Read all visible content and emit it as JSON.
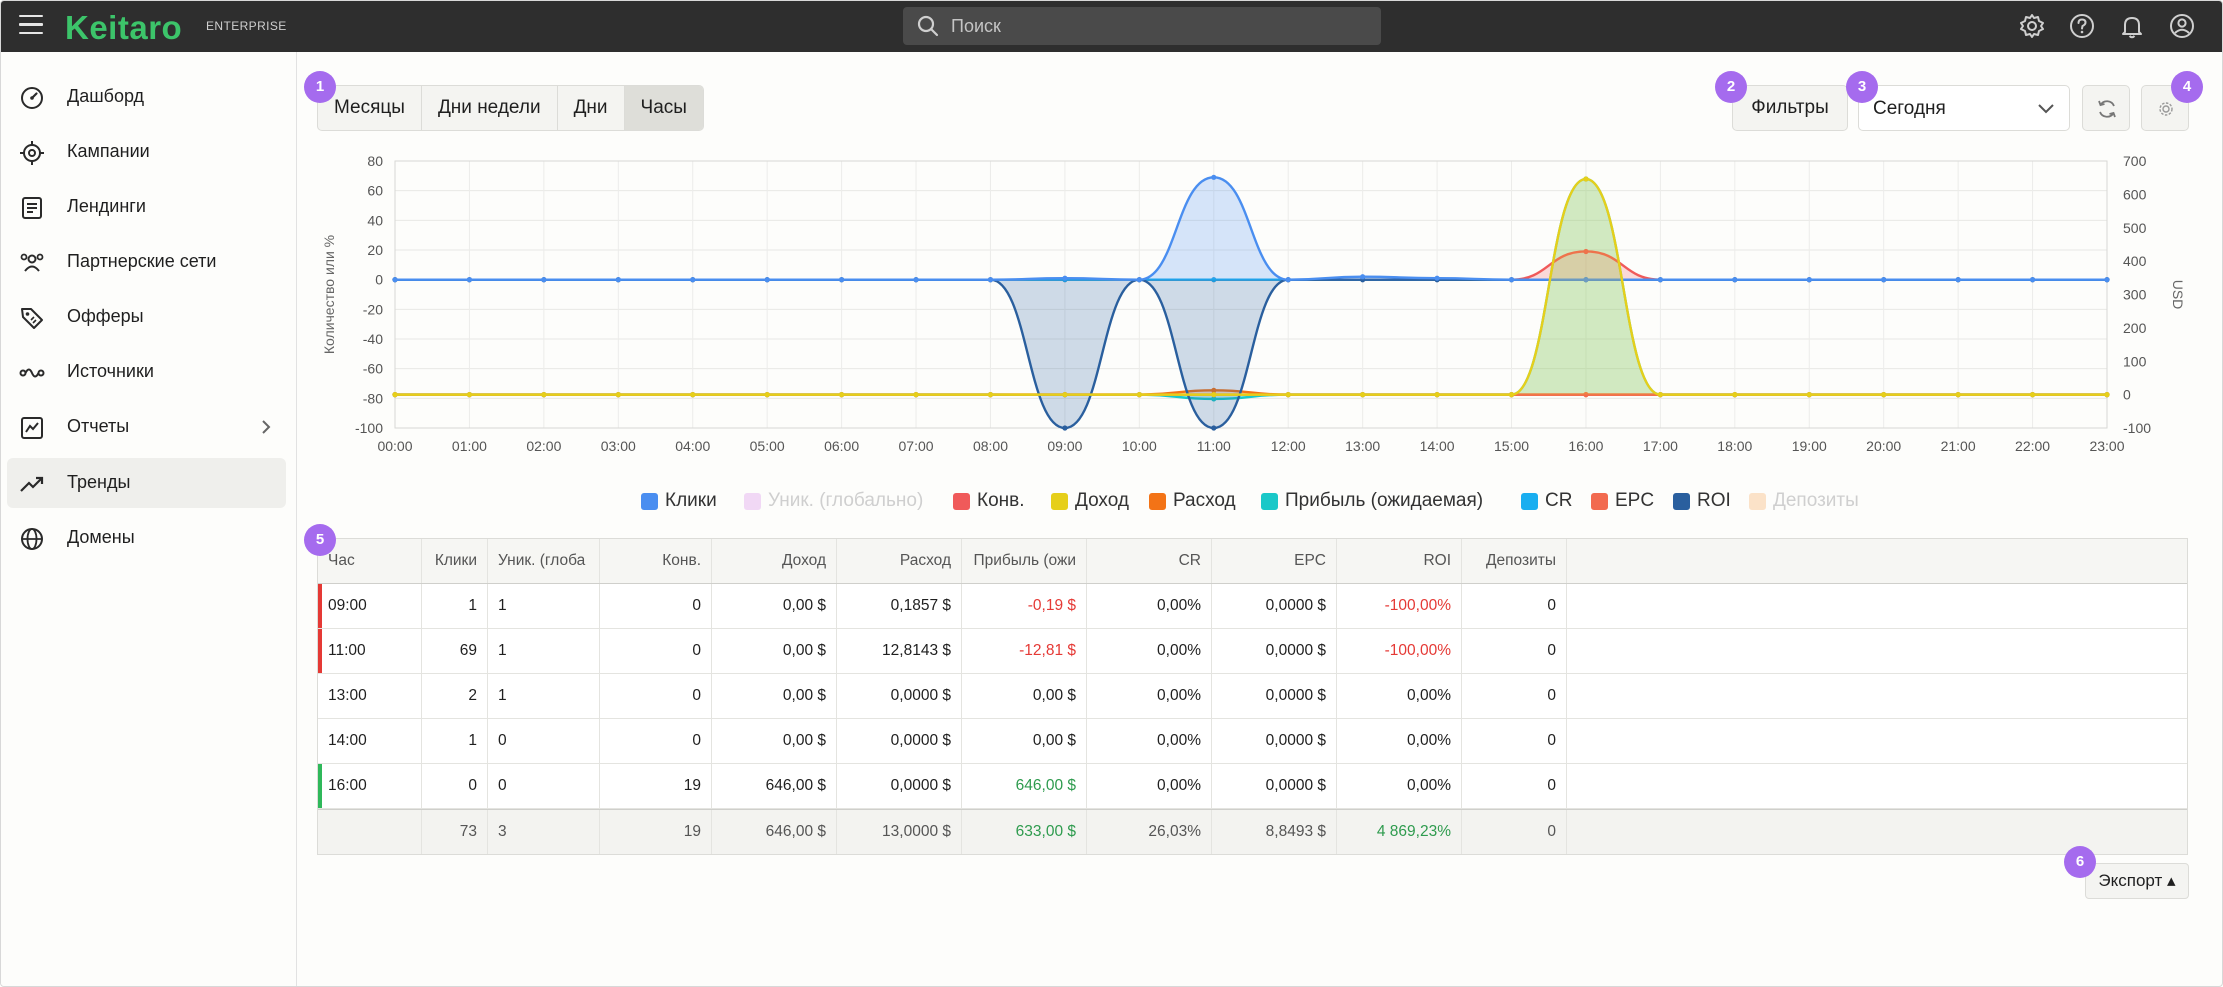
{
  "app": {
    "logo": "Keitaro",
    "edition": "ENTERPRISE",
    "search_placeholder": "Поиск"
  },
  "topbar_icons": [
    "gear-icon",
    "help-icon",
    "bell-icon",
    "user-icon"
  ],
  "sidebar": {
    "items": [
      {
        "label": "Дашборд",
        "icon": "dashboard-icon"
      },
      {
        "label": "Кампании",
        "icon": "target-icon"
      },
      {
        "label": "Лендинги",
        "icon": "document-icon"
      },
      {
        "label": "Партнерские сети",
        "icon": "people-icon"
      },
      {
        "label": "Офферы",
        "icon": "tag-icon"
      },
      {
        "label": "Источники",
        "icon": "source-icon"
      },
      {
        "label": "Отчеты",
        "icon": "report-icon",
        "has_submenu": true
      },
      {
        "label": "Тренды",
        "icon": "trend-icon",
        "active": true
      },
      {
        "label": "Домены",
        "icon": "globe-icon"
      }
    ]
  },
  "toolbar": {
    "segments": [
      "Месяцы",
      "Дни недели",
      "Дни",
      "Часы"
    ],
    "active_segment": "Часы",
    "filters_label": "Фильтры",
    "period_value": "Сегодня"
  },
  "badges": [
    "1",
    "2",
    "3",
    "4",
    "5",
    "6"
  ],
  "chart_data": {
    "type": "line",
    "ylabel": "Количество или %",
    "y2label": "USD",
    "ylim": [
      -100,
      80
    ],
    "y2lim": [
      -100,
      700
    ],
    "yticks": [
      "80",
      "60",
      "40",
      "20",
      "0",
      "-20",
      "-40",
      "-60",
      "-80",
      "-100"
    ],
    "y2ticks": [
      "700",
      "600",
      "500",
      "400",
      "300",
      "200",
      "100",
      "0",
      "-100"
    ],
    "x": [
      "00:00",
      "01:00",
      "02:00",
      "03:00",
      "04:00",
      "05:00",
      "06:00",
      "07:00",
      "08:00",
      "09:00",
      "10:00",
      "11:00",
      "12:00",
      "13:00",
      "14:00",
      "15:00",
      "16:00",
      "17:00",
      "18:00",
      "19:00",
      "20:00",
      "21:00",
      "22:00",
      "23:00"
    ],
    "series": [
      {
        "name": "Клики",
        "color": "#4a8ef0",
        "axis": "left",
        "values": [
          0,
          0,
          0,
          0,
          0,
          0,
          0,
          0,
          0,
          1,
          0,
          69,
          0,
          2,
          1,
          0,
          0,
          0,
          0,
          0,
          0,
          0,
          0,
          0
        ]
      },
      {
        "name": "Уник. (глобально)",
        "color": "#f1d8f5",
        "axis": "left",
        "hidden": true,
        "values": [
          0,
          0,
          0,
          0,
          0,
          0,
          0,
          0,
          0,
          1,
          0,
          1,
          0,
          1,
          0,
          0,
          0,
          0,
          0,
          0,
          0,
          0,
          0,
          0
        ]
      },
      {
        "name": "Конв.",
        "color": "#f05a5a",
        "axis": "left",
        "values": [
          0,
          0,
          0,
          0,
          0,
          0,
          0,
          0,
          0,
          0,
          0,
          0,
          0,
          0,
          0,
          0,
          19,
          0,
          0,
          0,
          0,
          0,
          0,
          0
        ]
      },
      {
        "name": "Доход",
        "color": "#e6cf1a",
        "axis": "right",
        "values": [
          0,
          0,
          0,
          0,
          0,
          0,
          0,
          0,
          0,
          0,
          0,
          0,
          0,
          0,
          0,
          0,
          646,
          0,
          0,
          0,
          0,
          0,
          0,
          0
        ]
      },
      {
        "name": "Расход",
        "color": "#f37316",
        "axis": "right",
        "values": [
          0,
          0,
          0,
          0,
          0,
          0,
          0,
          0,
          0,
          0.19,
          0,
          12.81,
          0,
          0,
          0,
          0,
          0,
          0,
          0,
          0,
          0,
          0,
          0,
          0
        ]
      },
      {
        "name": "Прибыль (ожидаемая)",
        "color": "#1ac8c8",
        "axis": "right",
        "values": [
          0,
          0,
          0,
          0,
          0,
          0,
          0,
          0,
          0,
          -0.19,
          0,
          -12.81,
          0,
          0,
          0,
          0,
          646,
          0,
          0,
          0,
          0,
          0,
          0,
          0
        ]
      },
      {
        "name": "CR",
        "color": "#19aef0",
        "axis": "left",
        "values": [
          0,
          0,
          0,
          0,
          0,
          0,
          0,
          0,
          0,
          0,
          0,
          0,
          0,
          0,
          0,
          0,
          0,
          0,
          0,
          0,
          0,
          0,
          0,
          0
        ]
      },
      {
        "name": "EPC",
        "color": "#f26a4f",
        "axis": "right",
        "values": [
          0,
          0,
          0,
          0,
          0,
          0,
          0,
          0,
          0,
          0,
          0,
          0,
          0,
          0,
          0,
          0,
          0,
          0,
          0,
          0,
          0,
          0,
          0,
          0
        ]
      },
      {
        "name": "ROI",
        "color": "#2a5f9e",
        "axis": "left",
        "values": [
          0,
          0,
          0,
          0,
          0,
          0,
          0,
          0,
          0,
          -100,
          0,
          -100,
          0,
          0,
          0,
          0,
          0,
          0,
          0,
          0,
          0,
          0,
          0,
          0
        ]
      },
      {
        "name": "Депозиты",
        "color": "#fbe2c8",
        "axis": "left",
        "hidden": true,
        "values": [
          0,
          0,
          0,
          0,
          0,
          0,
          0,
          0,
          0,
          0,
          0,
          0,
          0,
          0,
          0,
          0,
          0,
          0,
          0,
          0,
          0,
          0,
          0,
          0
        ]
      }
    ]
  },
  "table": {
    "columns": [
      "Час",
      "Клики",
      "Уник. (глоба",
      "Конв.",
      "Доход",
      "Расход",
      "Прибыль (ожи",
      "CR",
      "EPC",
      "ROI",
      "Депозиты"
    ],
    "rows": [
      {
        "mark": "neg",
        "cells": [
          "09:00",
          "1",
          "1",
          "0",
          "0,00 $",
          "0,1857 $",
          "-0,19 $",
          "0,00%",
          "0,0000 $",
          "-100,00%",
          "0"
        ]
      },
      {
        "mark": "neg",
        "cells": [
          "11:00",
          "69",
          "1",
          "0",
          "0,00 $",
          "12,8143 $",
          "-12,81 $",
          "0,00%",
          "0,0000 $",
          "-100,00%",
          "0"
        ]
      },
      {
        "mark": "none",
        "cells": [
          "13:00",
          "2",
          "1",
          "0",
          "0,00 $",
          "0,0000 $",
          "0,00 $",
          "0,00%",
          "0,0000 $",
          "0,00%",
          "0"
        ]
      },
      {
        "mark": "none",
        "cells": [
          "14:00",
          "1",
          "0",
          "0",
          "0,00 $",
          "0,0000 $",
          "0,00 $",
          "0,00%",
          "0,0000 $",
          "0,00%",
          "0"
        ]
      },
      {
        "mark": "pos",
        "cells": [
          "16:00",
          "0",
          "0",
          "19",
          "646,00 $",
          "0,0000 $",
          "646,00 $",
          "0,00%",
          "0,0000 $",
          "0,00%",
          "0"
        ]
      }
    ],
    "totals": [
      "",
      "73",
      "3",
      "19",
      "646,00 $",
      "13,0000 $",
      "633,00 $",
      "26,03%",
      "8,8493 $",
      "4 869,23%",
      "0"
    ]
  },
  "export_label": "Экспорт"
}
